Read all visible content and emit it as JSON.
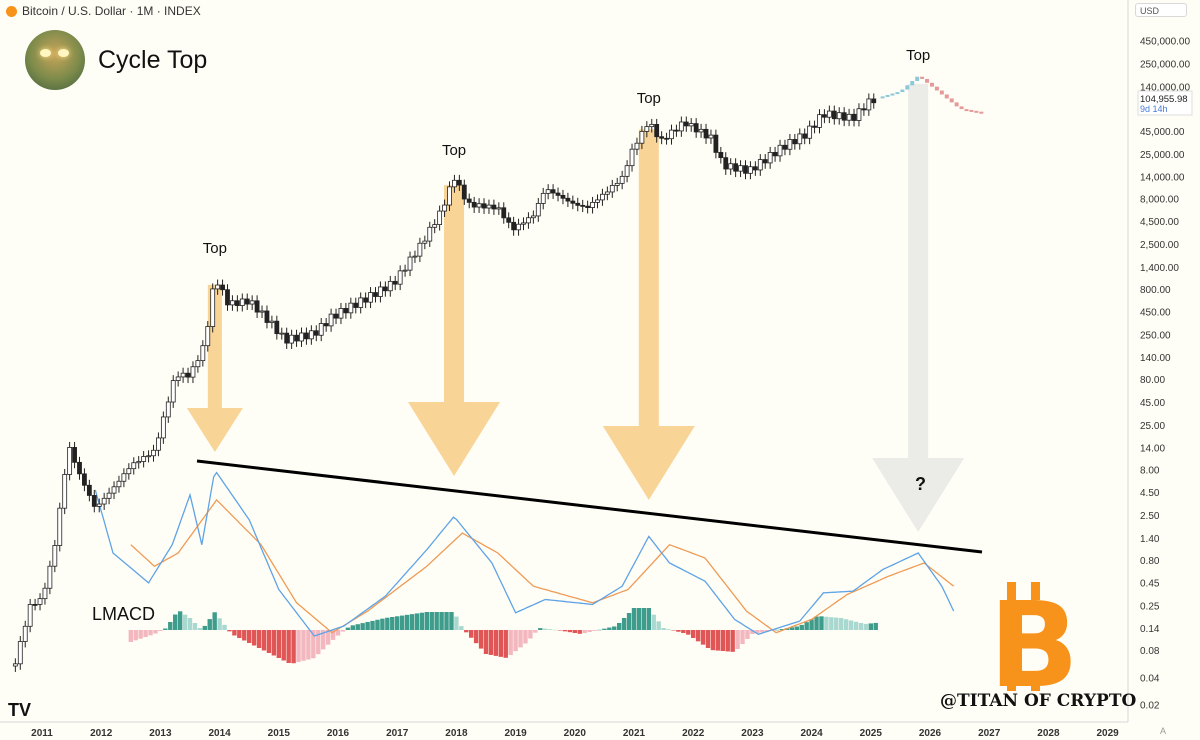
{
  "header": {
    "symbol_text": "Bitcoin / U.S. Dollar · 1M · INDEX"
  },
  "title": "Cycle Top",
  "currency_label": "USD",
  "price_label": {
    "price": "104,955.98",
    "countdown": "9d 14h"
  },
  "annotations": {
    "top_label": "Top",
    "question": "?",
    "indicator_label": "LMACD",
    "watermark": "@TITAN OF CRYPTO"
  },
  "colors": {
    "background": "#fffef6",
    "candle": "#222222",
    "projection_up": "#8ec9da",
    "projection_down": "#e59a9a",
    "macd_line": "#5ea3e6",
    "signal_line": "#ef9a55",
    "hist_pos_strong": "#3e9c8c",
    "hist_pos_weak": "#a8d8cf",
    "hist_neg_strong": "#e05656",
    "hist_neg_weak": "#f3b7bf",
    "arrow": "#f5c577",
    "arrow_future": "#e4e6e3",
    "trendline": "#000000",
    "bitcoin": "#f7931a"
  },
  "chart_data": {
    "type": "candlestick",
    "y_scale": "log",
    "y_tick_labels": [
      "450,000.00",
      "250,000.00",
      "140,000.00",
      "45,000.00",
      "25,000.00",
      "14,000.00",
      "8,000.00",
      "4,500.00",
      "2,500.00",
      "1,400.00",
      "800.00",
      "450.00",
      "250.00",
      "140.00",
      "80.00",
      "45.00",
      "25.00",
      "14.00",
      "8.00",
      "4.50",
      "2.50",
      "1.40",
      "0.80",
      "0.45",
      "0.25",
      "0.14",
      "0.08",
      "0.04",
      "0.02"
    ],
    "x_tick_labels": [
      "2011",
      "2012",
      "2013",
      "2014",
      "2015",
      "2016",
      "2017",
      "2018",
      "2019",
      "2020",
      "2021",
      "2022",
      "2023",
      "2024",
      "2025",
      "2026",
      "2027",
      "2028",
      "2029"
    ],
    "price_anchors": [
      {
        "date": "2010.55",
        "price": 0.06
      },
      {
        "date": "2010.8",
        "price": 0.25
      },
      {
        "date": "2011.0",
        "price": 0.3
      },
      {
        "date": "2011.2",
        "price": 1.0
      },
      {
        "date": "2011.45",
        "price": 15.0
      },
      {
        "date": "2011.6",
        "price": 8.0
      },
      {
        "date": "2011.9",
        "price": 3.0
      },
      {
        "date": "2012.2",
        "price": 5.0
      },
      {
        "date": "2012.5",
        "price": 9.0
      },
      {
        "date": "2012.9",
        "price": 13.0
      },
      {
        "date": "2013.25",
        "price": 90.0
      },
      {
        "date": "2013.5",
        "price": 90.0
      },
      {
        "date": "2013.75",
        "price": 200.0
      },
      {
        "date": "2013.92",
        "price": 1100.0
      },
      {
        "date": "2014.15",
        "price": 550.0
      },
      {
        "date": "2014.5",
        "price": 600.0
      },
      {
        "date": "2014.9",
        "price": 320.0
      },
      {
        "date": "2015.1",
        "price": 220.0
      },
      {
        "date": "2015.6",
        "price": 260.0
      },
      {
        "date": "2015.9",
        "price": 400.0
      },
      {
        "date": "2016.5",
        "price": 650.0
      },
      {
        "date": "2016.95",
        "price": 960.0
      },
      {
        "date": "2017.4",
        "price": 2500.0
      },
      {
        "date": "2017.75",
        "price": 6000.0
      },
      {
        "date": "2017.96",
        "price": 14000.0
      },
      {
        "date": "2018.2",
        "price": 7000.0
      },
      {
        "date": "2018.7",
        "price": 6400.0
      },
      {
        "date": "2018.95",
        "price": 3700.0
      },
      {
        "date": "2019.3",
        "price": 5300.0
      },
      {
        "date": "2019.5",
        "price": 10500.0
      },
      {
        "date": "2019.95",
        "price": 7200.0
      },
      {
        "date": "2020.2",
        "price": 6400.0
      },
      {
        "date": "2020.5",
        "price": 9200.0
      },
      {
        "date": "2020.8",
        "price": 13800.0
      },
      {
        "date": "2020.98",
        "price": 29000.0
      },
      {
        "date": "2021.25",
        "price": 58000.0
      },
      {
        "date": "2021.45",
        "price": 35000.0
      },
      {
        "date": "2021.85",
        "price": 57000.0
      },
      {
        "date": "2022.3",
        "price": 38000.0
      },
      {
        "date": "2022.5",
        "price": 19000.0
      },
      {
        "date": "2022.95",
        "price": 16500.0
      },
      {
        "date": "2023.5",
        "price": 30000.0
      },
      {
        "date": "2023.9",
        "price": 42000.0
      },
      {
        "date": "2024.2",
        "price": 71000.0
      },
      {
        "date": "2024.7",
        "price": 63000.0
      },
      {
        "date": "2024.95",
        "price": 94000.0
      },
      {
        "date": "2025.1",
        "price": 104955.98
      }
    ],
    "projection": [
      {
        "date": "2025.1",
        "price": 104955.98
      },
      {
        "date": "2025.5",
        "price": 125000.0
      },
      {
        "date": "2025.8",
        "price": 185000.0
      },
      {
        "date": "2026.1",
        "price": 130000.0
      },
      {
        "date": "2026.5",
        "price": 80000.0
      },
      {
        "date": "2026.9",
        "price": 72000.0
      }
    ],
    "cycle_tops": [
      {
        "date": "2013.92",
        "label": "Top"
      },
      {
        "date": "2017.96",
        "label": "Top"
      },
      {
        "date": "2021.25",
        "label": "Top"
      },
      {
        "date": "2025.8",
        "label": "Top"
      }
    ],
    "indicator": {
      "name": "LMACD",
      "macd_anchors": [
        {
          "date": "2011.9",
          "value": 0.88
        },
        {
          "date": "2012.2",
          "value": 0.5
        },
        {
          "date": "2012.8",
          "value": 0.32
        },
        {
          "date": "2013.2",
          "value": 0.55
        },
        {
          "date": "2013.5",
          "value": 0.85
        },
        {
          "date": "2013.7",
          "value": 0.55
        },
        {
          "date": "2013.92",
          "value": 1.0
        },
        {
          "date": "2014.5",
          "value": 0.7
        },
        {
          "date": "2015.0",
          "value": 0.28
        },
        {
          "date": "2015.6",
          "value": 0.0
        },
        {
          "date": "2016.1",
          "value": 0.06
        },
        {
          "date": "2016.8",
          "value": 0.24
        },
        {
          "date": "2017.5",
          "value": 0.52
        },
        {
          "date": "2017.96",
          "value": 0.72
        },
        {
          "date": "2018.6",
          "value": 0.44
        },
        {
          "date": "2019.0",
          "value": 0.14
        },
        {
          "date": "2019.5",
          "value": 0.22
        },
        {
          "date": "2020.3",
          "value": 0.19
        },
        {
          "date": "2020.8",
          "value": 0.3
        },
        {
          "date": "2021.25",
          "value": 0.6
        },
        {
          "date": "2021.6",
          "value": 0.44
        },
        {
          "date": "2022.2",
          "value": 0.33
        },
        {
          "date": "2022.7",
          "value": 0.1
        },
        {
          "date": "2023.1",
          "value": 0.01
        },
        {
          "date": "2023.8",
          "value": 0.09
        },
        {
          "date": "2024.2",
          "value": 0.26
        },
        {
          "date": "2024.7",
          "value": 0.27
        },
        {
          "date": "2025.2",
          "value": 0.4
        },
        {
          "date": "2025.8",
          "value": 0.5
        },
        {
          "date": "2026.2",
          "value": 0.3
        },
        {
          "date": "2026.4",
          "value": 0.15
        }
      ],
      "signal_anchors": [
        {
          "date": "2012.5",
          "value": 0.55
        },
        {
          "date": "2012.9",
          "value": 0.42
        },
        {
          "date": "2013.3",
          "value": 0.5
        },
        {
          "date": "2013.95",
          "value": 0.82
        },
        {
          "date": "2014.7",
          "value": 0.55
        },
        {
          "date": "2015.3",
          "value": 0.2
        },
        {
          "date": "2015.9",
          "value": 0.02
        },
        {
          "date": "2016.5",
          "value": 0.15
        },
        {
          "date": "2017.5",
          "value": 0.42
        },
        {
          "date": "2018.1",
          "value": 0.62
        },
        {
          "date": "2018.7",
          "value": 0.5
        },
        {
          "date": "2019.3",
          "value": 0.3
        },
        {
          "date": "2020.3",
          "value": 0.2
        },
        {
          "date": "2020.9",
          "value": 0.28
        },
        {
          "date": "2021.6",
          "value": 0.55
        },
        {
          "date": "2022.2",
          "value": 0.47
        },
        {
          "date": "2022.9",
          "value": 0.15
        },
        {
          "date": "2023.4",
          "value": 0.02
        },
        {
          "date": "2024.0",
          "value": 0.1
        },
        {
          "date": "2024.6",
          "value": 0.25
        },
        {
          "date": "2025.3",
          "value": 0.36
        },
        {
          "date": "2025.9",
          "value": 0.44
        },
        {
          "date": "2026.4",
          "value": 0.3
        }
      ],
      "histogram_anchors": [
        {
          "date": "2012.5",
          "value": -0.3
        },
        {
          "date": "2012.9",
          "value": -0.1
        },
        {
          "date": "2013.1",
          "value": 0.05
        },
        {
          "date": "2013.3",
          "value": 0.5
        },
        {
          "date": "2013.5",
          "value": 0.3
        },
        {
          "date": "2013.7",
          "value": 0.0
        },
        {
          "date": "2013.92",
          "value": 0.45
        },
        {
          "date": "2014.2",
          "value": -0.1
        },
        {
          "date": "2014.8",
          "value": -0.55
        },
        {
          "date": "2015.2",
          "value": -0.85
        },
        {
          "date": "2015.6",
          "value": -0.7
        },
        {
          "date": "2015.95",
          "value": -0.2
        },
        {
          "date": "2016.2",
          "value": 0.1
        },
        {
          "date": "2016.8",
          "value": 0.3
        },
        {
          "date": "2017.5",
          "value": 0.45
        },
        {
          "date": "2017.96",
          "value": 0.45
        },
        {
          "date": "2018.1",
          "value": 0.05
        },
        {
          "date": "2018.5",
          "value": -0.6
        },
        {
          "date": "2018.85",
          "value": -0.7
        },
        {
          "date": "2019.2",
          "value": -0.3
        },
        {
          "date": "2019.4",
          "value": 0.05
        },
        {
          "date": "2019.7",
          "value": 0.0
        },
        {
          "date": "2020.1",
          "value": -0.1
        },
        {
          "date": "2020.4",
          "value": 0.0
        },
        {
          "date": "2020.7",
          "value": 0.1
        },
        {
          "date": "2021.0",
          "value": 0.55
        },
        {
          "date": "2021.25",
          "value": 0.55
        },
        {
          "date": "2021.5",
          "value": 0.05
        },
        {
          "date": "2021.9",
          "value": -0.1
        },
        {
          "date": "2022.3",
          "value": -0.5
        },
        {
          "date": "2022.7",
          "value": -0.55
        },
        {
          "date": "2023.0",
          "value": -0.1
        },
        {
          "date": "2023.4",
          "value": 0.0
        },
        {
          "date": "2023.8",
          "value": 0.1
        },
        {
          "date": "2024.1",
          "value": 0.35
        },
        {
          "date": "2024.5",
          "value": 0.3
        },
        {
          "date": "2024.9",
          "value": 0.15
        },
        {
          "date": "2025.1",
          "value": 0.18
        }
      ]
    }
  }
}
